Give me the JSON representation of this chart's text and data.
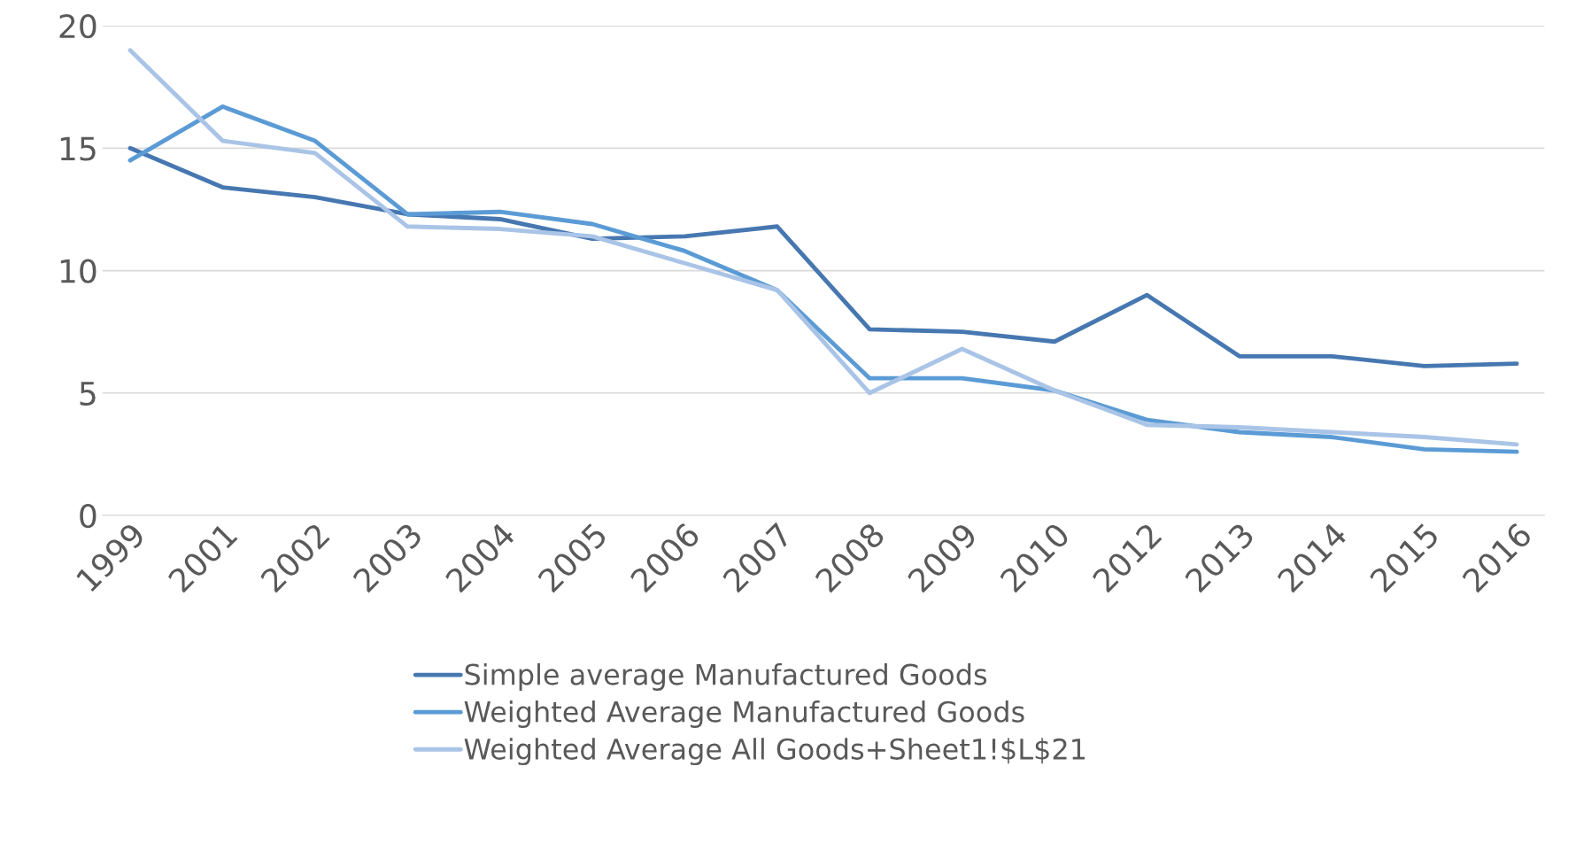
{
  "chart_data": {
    "type": "line",
    "categories": [
      "1999",
      "2001",
      "2002",
      "2003",
      "2004",
      "2005",
      "2006",
      "2007",
      "2008",
      "2009",
      "2010",
      "2012",
      "2013",
      "2014",
      "2015",
      "2016"
    ],
    "series": [
      {
        "name": "Simple average Manufactured Goods",
        "color": "#4677b0",
        "values": [
          15.0,
          13.4,
          13.0,
          12.3,
          12.1,
          11.3,
          11.4,
          11.8,
          7.6,
          7.5,
          7.1,
          9.0,
          6.5,
          6.5,
          6.1,
          6.2
        ]
      },
      {
        "name": "Weighted Average Manufactured Goods",
        "color": "#5b9bd5",
        "values": [
          14.5,
          16.7,
          15.3,
          12.3,
          12.4,
          11.9,
          10.8,
          9.2,
          5.6,
          5.6,
          5.1,
          3.9,
          3.4,
          3.2,
          2.7,
          2.6
        ]
      },
      {
        "name": "Weighted Average All Goods+Sheet1!$L$21",
        "color": "#a9c4e6",
        "values": [
          19.0,
          15.3,
          14.8,
          11.8,
          11.7,
          11.4,
          10.3,
          9.2,
          5.0,
          6.8,
          5.1,
          3.7,
          3.6,
          3.4,
          3.2,
          2.9
        ]
      }
    ],
    "ylim": [
      0,
      20
    ],
    "yticks": [
      0,
      5,
      10,
      15,
      20
    ],
    "grid": "y",
    "legend": "bottom",
    "marker": "none",
    "line_style": "solid"
  }
}
